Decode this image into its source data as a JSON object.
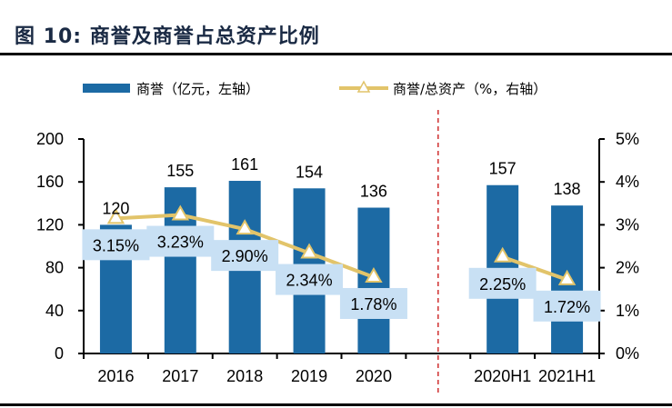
{
  "title": "图  10:  商誉及商誉占总资产比例",
  "chart_data": {
    "type": "bar",
    "title": "图 10: 商誉及商誉占总资产比例",
    "categories": [
      "2016",
      "2017",
      "2018",
      "2019",
      "2020",
      "",
      "2020H1",
      "2021H1"
    ],
    "series": [
      {
        "name": "商誉（亿元，左轴）",
        "type": "bar",
        "axis": "left",
        "color": "#1c6aa4",
        "values": [
          120,
          155,
          161,
          154,
          136,
          null,
          157,
          138
        ],
        "labels": [
          "120",
          "155",
          "161",
          "154",
          "136",
          "",
          "157",
          "138"
        ]
      },
      {
        "name": "商誉/总资产（%，右轴）",
        "type": "line",
        "axis": "right",
        "color": "#e2c46a",
        "marker": "triangle",
        "values": [
          3.15,
          3.23,
          2.9,
          2.34,
          1.78,
          null,
          2.25,
          1.72
        ],
        "labels": [
          "3.15%",
          "3.23%",
          "2.90%",
          "2.34%",
          "1.78%",
          "",
          "2.25%",
          "1.72%"
        ],
        "label_bg": "#c8e0f4"
      }
    ],
    "left_axis": {
      "ylim": [
        0,
        200
      ],
      "ticks": [
        "0",
        "40",
        "80",
        "120",
        "160",
        "200"
      ]
    },
    "right_axis": {
      "ylim": [
        0,
        5
      ],
      "ticks": [
        "0%",
        "1%",
        "2%",
        "3%",
        "4%",
        "5%"
      ]
    },
    "separator": {
      "style": "dashed",
      "color": "#d03030",
      "after_category": "2020"
    },
    "legend": {
      "placement": "top"
    },
    "grid": false
  }
}
